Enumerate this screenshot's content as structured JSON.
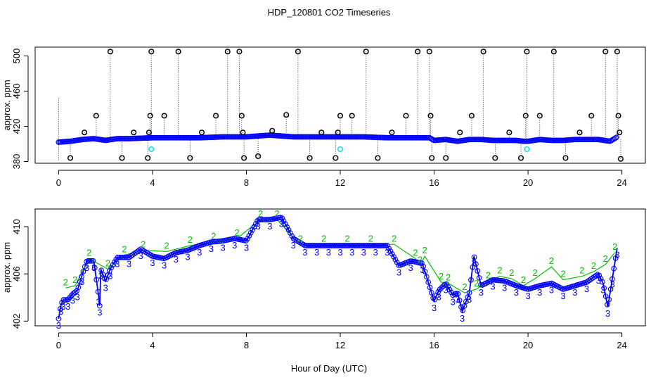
{
  "title": "HDP_120801  CO2 Timeseries",
  "colors": {
    "primary_series": "#0000ff",
    "secondary_series": "#00c000",
    "outlier": "#000000",
    "cyan_marker": "#00e0e0",
    "axis": "#000000"
  },
  "chart_data": [
    {
      "type": "scatter",
      "name": "top-panel",
      "xlabel": "",
      "ylabel": "approx. ppm",
      "xlim": [
        -1,
        25
      ],
      "ylim": [
        378,
        510
      ],
      "xticks": [
        "0",
        "4",
        "8",
        "12",
        "16",
        "20",
        "24"
      ],
      "xtick_values": [
        0,
        4,
        8,
        12,
        16,
        20,
        24
      ],
      "yticks": [
        "380",
        "420",
        "460",
        "500"
      ],
      "ytick_values": [
        380,
        420,
        460,
        500
      ],
      "grid": false,
      "baseline_series": {
        "name": "CO2 (blue circles)",
        "x": [
          0,
          0.5,
          1,
          1.5,
          2,
          2.5,
          3,
          4,
          5,
          6,
          7,
          8,
          8.5,
          9,
          9.5,
          10,
          11,
          12,
          13,
          14,
          15,
          15.8,
          16,
          16.5,
          17,
          17.5,
          18,
          18.5,
          19,
          19.5,
          19.8,
          20,
          20.5,
          21,
          21.5,
          22,
          22.5,
          23,
          23.5,
          23.8
        ],
        "y": [
          402,
          403,
          405,
          406,
          404,
          406,
          406,
          407,
          407,
          407,
          408,
          408,
          409,
          410,
          409,
          408,
          408,
          408,
          408,
          407,
          407,
          407,
          404,
          405,
          403,
          405,
          405,
          404,
          404,
          404,
          403,
          403,
          405,
          404,
          404,
          405,
          405,
          405,
          403,
          408
        ]
      },
      "outliers": {
        "name": "spikes (black circles)",
        "x": [
          0.5,
          1.1,
          1.6,
          2.2,
          2.7,
          3.2,
          3.8,
          3.85,
          3.9,
          3.95,
          4.5,
          5.1,
          5.6,
          6.1,
          6.7,
          7.2,
          7.7,
          7.8,
          7.85,
          7.9,
          8.5,
          9.1,
          9.7,
          10.2,
          10.7,
          11.2,
          11.8,
          11.9,
          12.0,
          12.5,
          13.1,
          13.6,
          14.2,
          14.8,
          15.3,
          15.8,
          15.85,
          15.9,
          16.5,
          17.1,
          17.6,
          18.1,
          18.6,
          19.2,
          19.7,
          19.9,
          19.95,
          20.5,
          21.1,
          21.6,
          22.2,
          22.7,
          23.3,
          23.8,
          23.85,
          23.9,
          23.95
        ],
        "y": [
          384,
          413,
          432,
          505,
          384,
          413,
          384,
          413,
          432,
          505,
          432,
          505,
          384,
          413,
          432,
          505,
          505,
          432,
          413,
          384,
          386,
          415,
          433,
          505,
          384,
          413,
          384,
          413,
          432,
          432,
          505,
          384,
          413,
          432,
          505,
          505,
          432,
          384,
          384,
          413,
          432,
          505,
          384,
          413,
          384,
          432,
          505,
          432,
          505,
          384,
          413,
          432,
          505,
          505,
          432,
          413,
          383
        ]
      },
      "cyan_points": {
        "name": "cyan markers",
        "x": [
          3.95,
          12.0,
          19.95
        ],
        "y": [
          394,
          394,
          394
        ]
      }
    },
    {
      "type": "line",
      "name": "bottom-panel",
      "xlabel": "Hour of Day (UTC)",
      "ylabel": "approx. ppm",
      "xlim": [
        -1,
        25
      ],
      "ylim": [
        401.6,
        411.5
      ],
      "xticks": [
        "0",
        "4",
        "8",
        "12",
        "16",
        "20",
        "24"
      ],
      "xtick_values": [
        0,
        4,
        8,
        12,
        16,
        20,
        24
      ],
      "yticks": [
        "402",
        "406",
        "410"
      ],
      "ytick_values": [
        402,
        406,
        410
      ],
      "grid": false,
      "series": [
        {
          "name": "3 (blue)",
          "marker": "3",
          "x": [
            0.0,
            0.1,
            0.2,
            0.4,
            0.6,
            0.8,
            1.0,
            1.2,
            1.5,
            1.7,
            1.75,
            1.8,
            2.0,
            2.2,
            2.5,
            3.0,
            3.5,
            4.0,
            4.5,
            5.0,
            5.5,
            6.0,
            6.5,
            7.0,
            7.5,
            8.0,
            8.5,
            9.0,
            9.5,
            10.0,
            10.5,
            11.0,
            11.5,
            12.0,
            12.5,
            13.0,
            13.5,
            14.0,
            14.5,
            15.0,
            15.5,
            16.0,
            16.2,
            16.5,
            16.8,
            17.0,
            17.2,
            17.5,
            17.7,
            18.0,
            18.5,
            19.0,
            19.5,
            20.0,
            20.5,
            21.0,
            21.5,
            22.0,
            22.5,
            23.0,
            23.2,
            23.4,
            23.6,
            23.8
          ],
          "y": [
            402.2,
            403.4,
            403.8,
            403.8,
            404.3,
            404.6,
            405.9,
            407.1,
            407.1,
            404.2,
            403.3,
            406.4,
            405.4,
            406.4,
            407.4,
            407.4,
            408.1,
            407.5,
            407.3,
            407.8,
            408.0,
            408.4,
            408.7,
            408.8,
            409.0,
            408.8,
            410.6,
            410.6,
            410.8,
            409.0,
            408.4,
            408.4,
            408.4,
            408.4,
            408.4,
            408.4,
            408.4,
            408.4,
            406.7,
            407.1,
            406.9,
            403.7,
            404.6,
            405.2,
            404.2,
            404.4,
            402.8,
            404.4,
            407.5,
            405.0,
            405.5,
            405.4,
            405.0,
            404.7,
            405.0,
            405.2,
            404.7,
            405.0,
            405.3,
            406.0,
            405.2,
            403.2,
            405.7,
            408.2
          ]
        },
        {
          "name": "2 (green)",
          "marker": "2",
          "x": [
            0.3,
            0.7,
            1.3,
            2.1,
            2.8,
            3.6,
            4.6,
            5.6,
            6.6,
            7.6,
            8.6,
            9.3,
            10.3,
            11.3,
            12.3,
            13.3,
            14.3,
            15.2,
            15.4,
            15.6,
            16.3,
            16.6,
            17.3,
            17.8,
            18.3,
            18.8,
            19.3,
            19.8,
            20.3,
            21.0,
            21.5,
            22.3,
            22.8,
            23.3,
            23.7
          ],
          "y": [
            404.8,
            405.0,
            407.3,
            406.4,
            407.6,
            408.0,
            407.9,
            408.4,
            408.7,
            409.0,
            410.6,
            410.6,
            408.5,
            408.5,
            408.5,
            408.5,
            408.5,
            407.3,
            406.7,
            407.5,
            405.3,
            405.2,
            404.4,
            404.7,
            405.4,
            405.8,
            405.6,
            405.0,
            405.6,
            406.6,
            405.5,
            405.8,
            406.2,
            406.8,
            407.8
          ]
        }
      ]
    }
  ]
}
